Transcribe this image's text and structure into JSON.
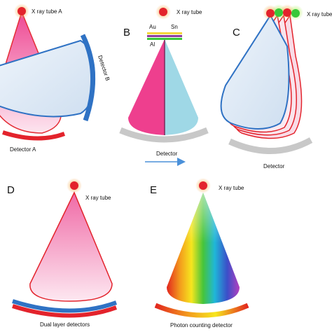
{
  "panel_labels": {
    "b": "B",
    "c": "C",
    "d": "D",
    "e": "E"
  },
  "labels": {
    "tube_a": "X ray tube A",
    "detector_a": "Detector A",
    "detector_b": "Detector B",
    "tube_b": "X ray tube",
    "au": "Au",
    "sn": "Sn",
    "al": "Al",
    "detector_b_panel": "Detector",
    "tube_c": "X ray tube",
    "detector_c": "Detector",
    "tube_d": "X ray tube",
    "detector_d": "Dual layer detectors",
    "tube_e": "X ray tube",
    "detector_e": "Photon counting detector"
  },
  "colors": {
    "pink": "#ee3f8e",
    "pink_light": "#f8c7de",
    "cyan": "#9fd8e6",
    "light_blue": "#dde9f6",
    "outline_blue": "#2f72c4",
    "red": "#e3232c",
    "gray": "#c8c8c8",
    "green": "#37c83a",
    "arrow_blue": "#4a90d9"
  }
}
